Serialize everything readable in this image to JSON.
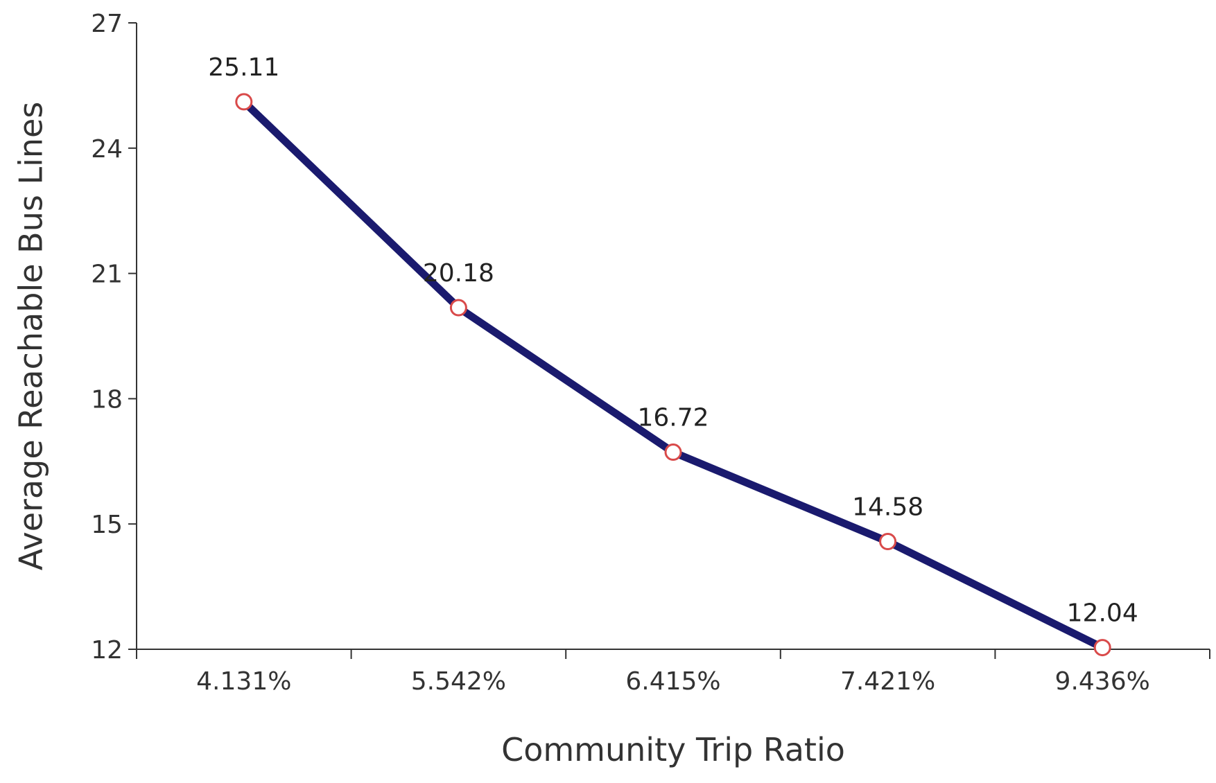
{
  "chart_data": {
    "type": "line",
    "categories": [
      "4.131%",
      "5.542%",
      "6.415%",
      "7.421%",
      "9.436%"
    ],
    "series": [
      {
        "values": [
          25.11,
          20.18,
          16.72,
          14.58,
          12.04
        ],
        "data_labels": [
          "25.11",
          "20.18",
          "16.72",
          "14.58",
          "12.04"
        ],
        "line_color": "#1a1a6e",
        "marker_stroke": "#d94a4a",
        "marker_fill": "#ffffff"
      }
    ],
    "title": "",
    "xlabel": "Community Trip Ratio",
    "ylabel": "Average Reachable Bus Lines",
    "ylim": [
      12,
      27
    ],
    "yticks": [
      12,
      15,
      18,
      21,
      24,
      27
    ],
    "ytick_labels": [
      "12",
      "15",
      "18",
      "21",
      "24",
      "27"
    ],
    "grid": false,
    "legend": "none"
  }
}
